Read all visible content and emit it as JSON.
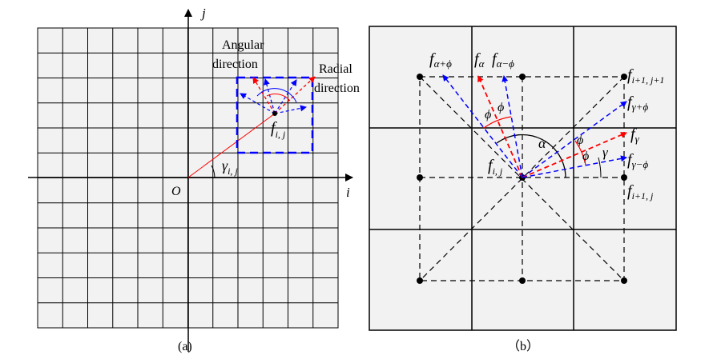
{
  "panel_a": {
    "caption": "(a)",
    "axis_i": "i",
    "axis_j": "j",
    "origin": "O",
    "angular_line1": "Angular",
    "angular_line2": "direction",
    "radial_line1": "Radial",
    "radial_line2": "direction",
    "node_f": "f",
    "node_sub": "i, j",
    "gamma": "γ",
    "gamma_sub": "i, j"
  },
  "panel_b": {
    "caption": "（b）",
    "alpha": "α",
    "gamma": "γ",
    "phi": "ϕ",
    "f": "f",
    "f_ij_sub": "i, j",
    "f_alpha_plus_sub": "α+ϕ",
    "f_alpha_sub": "α",
    "f_alpha_minus_sub": "α−ϕ",
    "f_i1j1_sub": "i+1, j+1",
    "f_gamma_plus_sub": "γ+ϕ",
    "f_gamma_sub": "γ",
    "f_gamma_minus_sub": "γ−ϕ",
    "f_i1j_sub": "i+1, j"
  },
  "colors": {
    "grid_fill": "#f2f2f2",
    "line": "#000000",
    "red": "#ff0000",
    "blue": "#0000ff"
  }
}
